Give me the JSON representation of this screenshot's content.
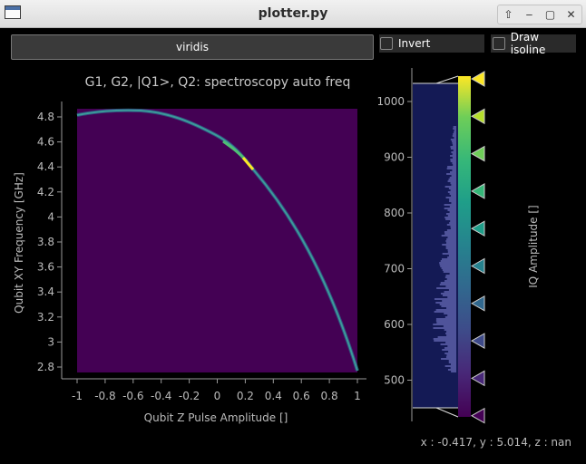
{
  "window": {
    "title": "plotter.py",
    "buttons": [
      "⇧",
      "‒",
      "▢",
      "✕"
    ]
  },
  "toolbar": {
    "colormap": "viridis",
    "invert_label": "Invert",
    "invert_checked": false,
    "isoline_label": "Draw isoline",
    "isoline_checked": false
  },
  "plot": {
    "title": "G1, G2, |Q1>, Q2: spectroscopy auto freq",
    "xlabel": "Qubit Z Pulse Amplitude []",
    "ylabel": "Qubit XY Frequency [GHz]",
    "x_ticks": [
      "-1",
      "-0.8",
      "-0.6",
      "-0.4",
      "-0.2",
      "0",
      "0.2",
      "0.4",
      "0.6",
      "0.8",
      "1"
    ],
    "y_ticks": [
      "4.8",
      "4.6",
      "4.4",
      "4.2",
      "4",
      "3.8",
      "3.6",
      "3.4",
      "3.2",
      "3",
      "2.8"
    ]
  },
  "colorbar": {
    "label": "IQ Amplitude []",
    "ticks": [
      "1000",
      "900",
      "800",
      "700",
      "600",
      "500"
    ]
  },
  "status": "x : -0.417, y : 5.014, z : nan",
  "colors": {
    "background": "#000000",
    "image_bg": "#440154",
    "accent_bright": "#fde725"
  }
}
